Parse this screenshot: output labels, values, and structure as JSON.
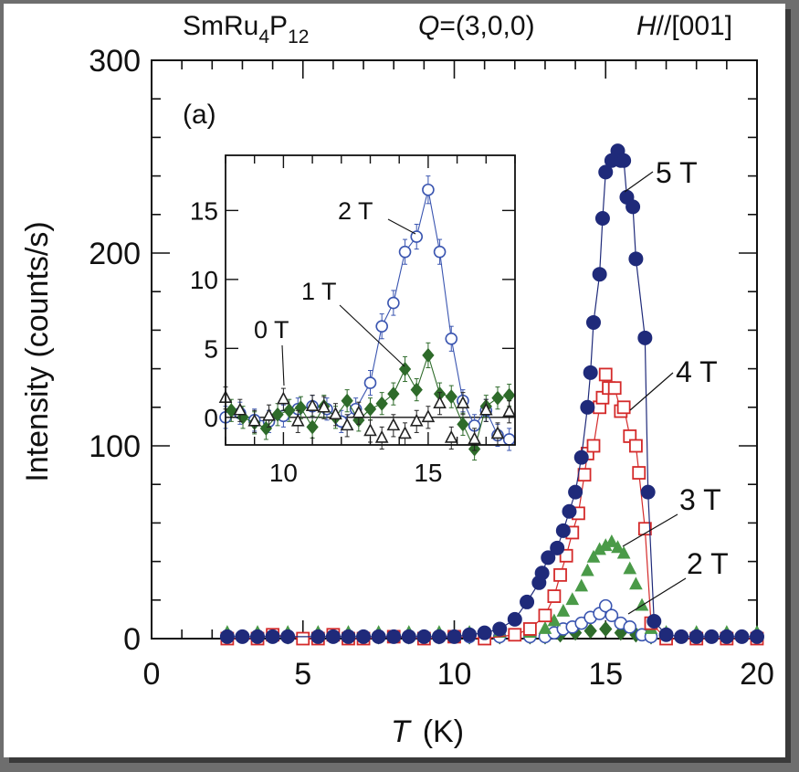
{
  "chart_data": {
    "type": "scatter",
    "title": {
      "compound": "SmRu",
      "sub1": "4",
      "p": "P",
      "sub2": "12",
      "q_label": "Q",
      "q_value": "=(3,0,0)",
      "h_label": "H",
      "h_value": "//[001]"
    },
    "panel_label": "(a)",
    "xlabel_italic": "T",
    "xlabel_unit": "(K)",
    "ylabel": "Intensity  (counts/s)",
    "xlim": [
      0,
      20
    ],
    "ylim": [
      0,
      300
    ],
    "xticks": [
      0,
      5,
      10,
      15,
      20
    ],
    "yticks": [
      0,
      100,
      200,
      300
    ],
    "x_minor_step": 1,
    "y_minor_step": 20,
    "grid": false,
    "series": [
      {
        "name": "5 T",
        "marker": "filled-circle",
        "color": "#1f2a7a",
        "x": [
          2.5,
          3.0,
          3.5,
          4.0,
          4.5,
          5.5,
          6.0,
          6.5,
          7.0,
          7.5,
          8.0,
          8.5,
          9.0,
          9.5,
          10.0,
          10.5,
          11.0,
          11.5,
          12.0,
          12.4,
          12.8,
          12.9,
          13.1,
          13.4,
          13.6,
          13.8,
          14.0,
          14.2,
          14.4,
          14.5,
          14.6,
          14.8,
          14.9,
          15.0,
          15.2,
          15.4,
          15.5,
          15.6,
          15.7,
          15.9,
          16.0,
          16.3,
          16.4,
          16.6,
          17.0,
          17.5,
          18.0,
          18.5,
          19.0,
          19.5,
          20.0
        ],
        "y": [
          1,
          1,
          1,
          1,
          1,
          1,
          1,
          1,
          1,
          1,
          1,
          1,
          1,
          1,
          1,
          2,
          3,
          5,
          10,
          19,
          29,
          34,
          42,
          47,
          56,
          66,
          76,
          94,
          120,
          138,
          164,
          189,
          218,
          242,
          248,
          253,
          248,
          248,
          229,
          224,
          197,
          156,
          76,
          9,
          2,
          1,
          1,
          1,
          1,
          1,
          1
        ]
      },
      {
        "name": "4 T",
        "marker": "open-square",
        "color": "#d42a2a",
        "x": [
          2.5,
          3.5,
          4.0,
          5.0,
          5.5,
          6.0,
          6.5,
          7.0,
          8.0,
          9.0,
          10.0,
          11.0,
          12.0,
          12.5,
          13.0,
          13.3,
          13.5,
          13.7,
          13.9,
          14.1,
          14.3,
          14.4,
          14.6,
          14.8,
          14.9,
          15.0,
          15.1,
          15.3,
          15.5,
          15.6,
          15.8,
          16.0,
          16.1,
          16.3,
          16.5,
          17.0,
          18.0,
          19.0,
          20.0
        ],
        "y": [
          0,
          0,
          2,
          0,
          0,
          2,
          0,
          0,
          1,
          0,
          1,
          0,
          2,
          5,
          12,
          22,
          33,
          43,
          55,
          65,
          85,
          96,
          100,
          120,
          125,
          137,
          130,
          130,
          118,
          120,
          105,
          100,
          86,
          57,
          8,
          0,
          0,
          0,
          0
        ]
      },
      {
        "name": "3 T",
        "marker": "filled-triangle",
        "color": "#4a9a48",
        "x": [
          2.5,
          3.5,
          4.5,
          5.5,
          6.5,
          7.5,
          8.5,
          9.5,
          10.5,
          11.5,
          12.5,
          13.0,
          13.3,
          13.6,
          13.9,
          14.2,
          14.4,
          14.6,
          14.8,
          15.0,
          15.2,
          15.4,
          15.6,
          15.8,
          16.0,
          16.2,
          16.5,
          17.0,
          18.0,
          19.0,
          20.0
        ],
        "y": [
          3,
          3,
          3,
          3,
          3,
          3,
          3,
          3,
          3,
          3,
          3,
          5,
          9,
          14,
          20,
          27,
          35,
          42,
          46,
          48,
          50,
          47,
          44,
          36,
          28,
          17,
          5,
          3,
          3,
          3,
          3
        ]
      },
      {
        "name": "2 T",
        "marker": "open-circle",
        "color": "#3a55b0",
        "x": [
          2.5,
          3.5,
          4.5,
          5.5,
          6.5,
          7.5,
          8.5,
          9.5,
          10.5,
          11.5,
          12.5,
          13.0,
          13.3,
          13.6,
          13.9,
          14.2,
          14.5,
          14.8,
          15.0,
          15.2,
          15.5,
          15.8,
          16.2,
          16.5,
          17.0,
          18.0,
          19.0,
          20.0
        ],
        "y": [
          1,
          1,
          1,
          1,
          1,
          1,
          1,
          1,
          1,
          1,
          1,
          1,
          3,
          5,
          6,
          8,
          11,
          13,
          17,
          12,
          8,
          6,
          2,
          1,
          1,
          1,
          1,
          1
        ]
      },
      {
        "name": "1 T",
        "marker": "filled-diamond",
        "color": "#2e6b2a",
        "x": [
          2.5,
          3.5,
          4.5,
          5.5,
          6.5,
          7.5,
          8.5,
          9.5,
          10.5,
          11.5,
          12.5,
          13.0,
          13.5,
          14.0,
          14.5,
          15.0,
          15.5,
          16.0,
          16.5,
          17.0,
          18.0,
          19.0,
          20.0
        ],
        "y": [
          1,
          1,
          1,
          1,
          1,
          1,
          1,
          1,
          1,
          1,
          1,
          1,
          2,
          3,
          4,
          5,
          3,
          2,
          1,
          1,
          1,
          1,
          1
        ]
      }
    ],
    "annotations": [
      {
        "label": "5 T"
      },
      {
        "label": "4 T"
      },
      {
        "label": "3 T"
      },
      {
        "label": "2 T"
      }
    ],
    "inset": {
      "type": "scatter",
      "xlim": [
        8,
        18
      ],
      "ylim": [
        -2,
        19
      ],
      "xticks": [
        10,
        15
      ],
      "yticks": [
        0,
        5,
        10,
        15
      ],
      "x_minor_step": 1,
      "zero_line": true,
      "series": [
        {
          "name": "2 T",
          "marker": "open-circle",
          "color": "#3a55b0",
          "x": [
            8.0,
            8.5,
            9.0,
            9.5,
            10.0,
            10.5,
            11.0,
            11.5,
            12.0,
            12.5,
            13.0,
            13.4,
            13.8,
            14.2,
            14.6,
            15.0,
            15.4,
            15.8,
            16.2,
            16.6,
            17.0,
            17.4,
            17.8
          ],
          "y": [
            0.0,
            0.3,
            -0.2,
            -0.3,
            0.1,
            0.6,
            0.8,
            0.6,
            -0.3,
            0.6,
            2.5,
            6.6,
            8.3,
            12.0,
            13.1,
            16.5,
            12.0,
            5.7,
            1.2,
            -0.6,
            0.5,
            -1.3,
            -1.6
          ],
          "err": [
            0.8,
            0.8,
            0.8,
            0.8,
            0.8,
            0.8,
            0.8,
            0.8,
            0.8,
            0.8,
            0.9,
            0.9,
            0.9,
            0.9,
            0.9,
            1.0,
            0.9,
            0.9,
            0.8,
            0.8,
            0.8,
            0.8,
            0.8
          ]
        },
        {
          "name": "1 T",
          "marker": "filled-diamond",
          "color": "#2e6b2a",
          "x": [
            8.2,
            8.6,
            9.0,
            9.4,
            9.8,
            10.2,
            10.6,
            11.0,
            11.4,
            11.8,
            12.2,
            12.6,
            13.0,
            13.4,
            13.8,
            14.2,
            14.6,
            15.0,
            15.4,
            15.8,
            16.2,
            16.6,
            17.0,
            17.4,
            17.8
          ],
          "y": [
            0.5,
            0.0,
            -0.4,
            -0.8,
            0.2,
            0.5,
            0.7,
            -0.7,
            0.8,
            0.0,
            1.2,
            -0.2,
            0.6,
            1.0,
            1.7,
            3.5,
            2.0,
            4.5,
            1.7,
            1.5,
            -0.5,
            -2.3,
            0.8,
            1.4,
            1.6
          ],
          "err": [
            0.8,
            0.8,
            0.8,
            0.8,
            0.8,
            0.8,
            0.8,
            0.8,
            0.8,
            0.8,
            0.8,
            0.8,
            0.8,
            0.8,
            0.8,
            0.9,
            0.8,
            0.9,
            0.8,
            0.8,
            0.8,
            0.8,
            0.8,
            0.8,
            0.8
          ]
        },
        {
          "name": "0 T",
          "marker": "open-triangle",
          "color": "#222222",
          "x": [
            8.0,
            8.5,
            9.0,
            9.5,
            10.0,
            10.5,
            11.0,
            11.4,
            11.8,
            12.2,
            12.6,
            13.0,
            13.4,
            13.8,
            14.2,
            14.6,
            15.0,
            15.4,
            15.8,
            16.2,
            16.6,
            17.0,
            17.4,
            17.8
          ],
          "y": [
            1.4,
            0.5,
            -0.3,
            0.1,
            1.3,
            -0.3,
            0.8,
            0.7,
            0.2,
            -0.6,
            0.3,
            -1.0,
            -1.5,
            -0.6,
            -1.2,
            -0.3,
            0.0,
            1.0,
            -1.5,
            1.0,
            -1.6,
            0.5,
            -1.2,
            0.4
          ],
          "err": [
            0.8,
            0.8,
            0.8,
            0.8,
            0.8,
            0.8,
            0.8,
            0.8,
            0.8,
            0.8,
            0.8,
            0.8,
            0.8,
            0.8,
            0.8,
            0.8,
            0.8,
            0.8,
            0.8,
            0.8,
            0.8,
            0.8,
            0.8,
            0.8
          ]
        }
      ],
      "annotations": [
        {
          "label": "2 T"
        },
        {
          "label": "1 T"
        },
        {
          "label": "0 T"
        }
      ]
    }
  }
}
